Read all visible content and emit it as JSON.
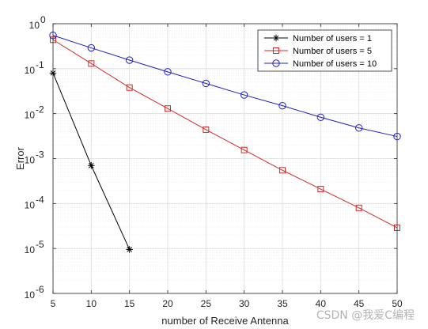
{
  "chart_data": {
    "type": "line",
    "title": "",
    "xlabel": "number of Receive Antenna",
    "ylabel": "Error",
    "xlim": [
      5,
      50
    ],
    "ylim": [
      1e-06,
      1
    ],
    "yscale": "log",
    "grid": true,
    "minor_grid": true,
    "x_ticks": [
      5,
      10,
      15,
      20,
      25,
      30,
      35,
      40,
      45,
      50
    ],
    "x_tick_labels": [
      "5",
      "10",
      "15",
      "20",
      "25",
      "30",
      "35",
      "40",
      "45",
      "50"
    ],
    "y_ticks": [
      {
        "value": 1,
        "base": "10",
        "exp": "0"
      },
      {
        "value": 0.1,
        "base": "10",
        "exp": "-1"
      },
      {
        "value": 0.01,
        "base": "10",
        "exp": "-2"
      },
      {
        "value": 0.001,
        "base": "10",
        "exp": "-3"
      },
      {
        "value": 0.0001,
        "base": "10",
        "exp": "-4"
      },
      {
        "value": 1e-05,
        "base": "10",
        "exp": "-5"
      },
      {
        "value": 1e-06,
        "base": "10",
        "exp": "-6"
      }
    ],
    "legend_position": "top-right",
    "series": [
      {
        "name": "Number of users = 1",
        "color": "#000000",
        "marker": "asterisk",
        "x": [
          5,
          10,
          15
        ],
        "y": [
          0.08,
          0.0007,
          9.5e-06
        ]
      },
      {
        "name": "Number of users = 5",
        "color": "#d62728",
        "marker": "square",
        "x": [
          5,
          10,
          15,
          20,
          25,
          30,
          35,
          40,
          45,
          50
        ],
        "y": [
          0.44,
          0.13,
          0.038,
          0.013,
          0.0044,
          0.00155,
          0.00055,
          0.00021,
          8e-05,
          2.9e-05
        ]
      },
      {
        "name": "Number of users = 10",
        "color": "#1f1fbf",
        "marker": "circle",
        "x": [
          5,
          10,
          15,
          20,
          25,
          30,
          35,
          40,
          45,
          50
        ],
        "y": [
          0.55,
          0.29,
          0.155,
          0.085,
          0.047,
          0.026,
          0.015,
          0.0083,
          0.0048,
          0.0031
        ]
      }
    ]
  },
  "watermark": "CSDN @我爱C编程"
}
